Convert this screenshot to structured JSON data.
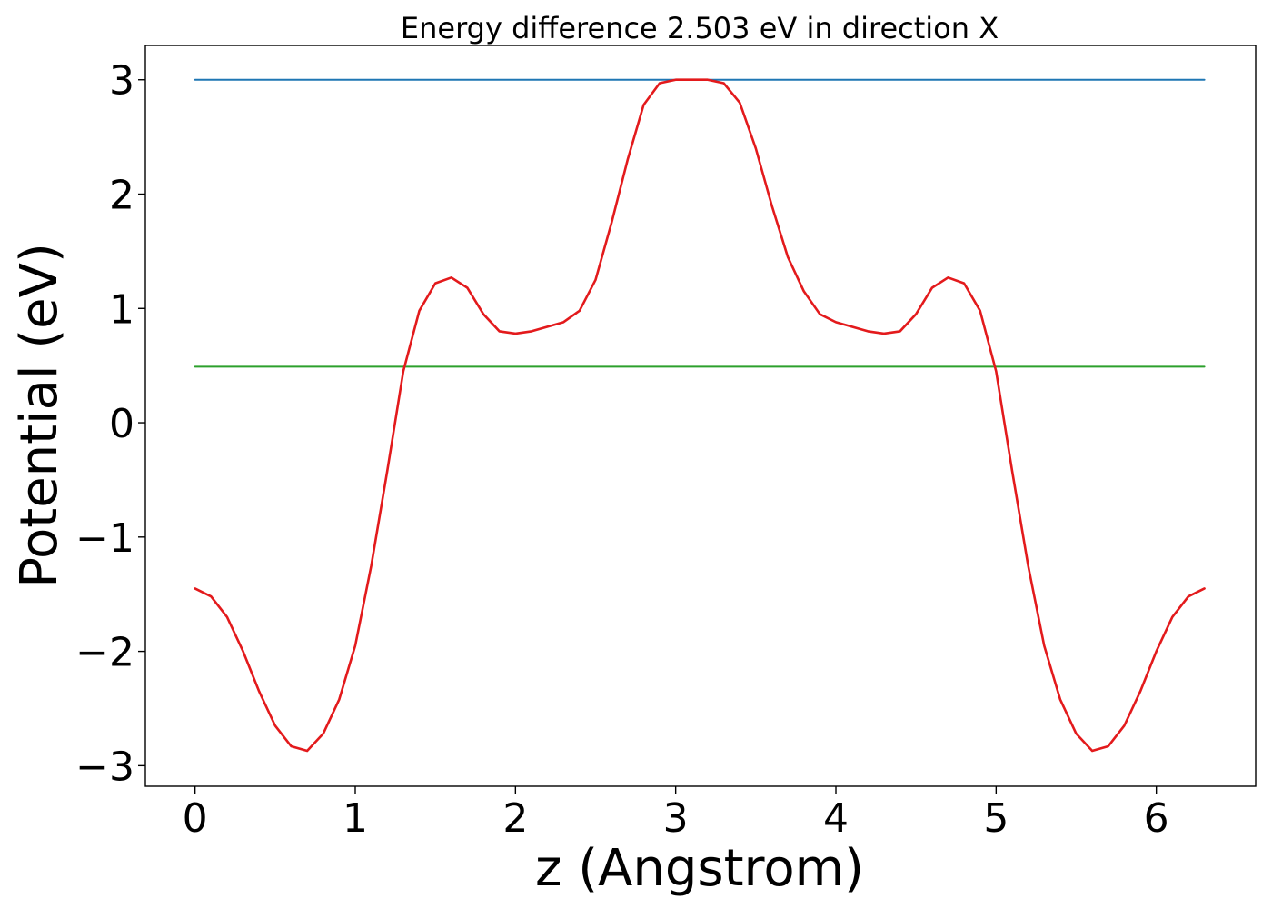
{
  "chart_data": {
    "type": "line",
    "title": "Energy difference 2.503 eV in direction X",
    "xlabel": "z (Angstrom)",
    "ylabel": "Potential (eV)",
    "xlim": [
      -0.31,
      6.62
    ],
    "ylim": [
      -3.18,
      3.3
    ],
    "xticks": [
      0,
      1,
      2,
      3,
      4,
      5,
      6
    ],
    "xtick_labels": [
      "0",
      "1",
      "2",
      "3",
      "4",
      "5",
      "6"
    ],
    "yticks": [
      -3,
      -2,
      -1,
      0,
      1,
      2,
      3
    ],
    "ytick_labels": [
      "−3",
      "−2",
      "−1",
      "0",
      "1",
      "2",
      "3"
    ],
    "grid": false,
    "series": [
      {
        "color": "#1f77b4",
        "x": [
          0,
          6.3
        ],
        "y": [
          3.0,
          3.0
        ]
      },
      {
        "color": "#2ca02c",
        "x": [
          0,
          6.3
        ],
        "y": [
          0.49,
          0.49
        ]
      },
      {
        "color": "#e31a1c",
        "x": [
          0,
          0.1,
          0.2,
          0.3,
          0.4,
          0.5,
          0.6,
          0.7,
          0.8,
          0.9,
          1.0,
          1.1,
          1.2,
          1.3,
          1.4,
          1.5,
          1.6,
          1.7,
          1.8,
          1.9,
          2.0,
          2.1,
          2.2,
          2.3,
          2.4,
          2.5,
          2.6,
          2.7,
          2.8,
          2.9,
          3.0,
          3.1,
          3.2,
          3.3,
          3.4,
          3.5,
          3.6,
          3.7,
          3.8,
          3.9,
          4.0,
          4.1,
          4.2,
          4.3,
          4.4,
          4.5,
          4.6,
          4.7,
          4.8,
          4.9,
          5.0,
          5.1,
          5.2,
          5.3,
          5.4,
          5.5,
          5.6,
          5.7,
          5.8,
          5.9,
          6.0,
          6.1,
          6.2,
          6.3
        ],
        "y": [
          -1.45,
          -1.52,
          -1.7,
          -2.0,
          -2.35,
          -2.65,
          -2.83,
          -2.87,
          -2.72,
          -2.42,
          -1.95,
          -1.25,
          -0.42,
          0.45,
          0.98,
          1.22,
          1.27,
          1.18,
          0.95,
          0.8,
          0.78,
          0.8,
          0.84,
          0.88,
          0.98,
          1.25,
          1.75,
          2.3,
          2.78,
          2.97,
          3.0,
          3.0,
          3.0,
          2.97,
          2.8,
          2.4,
          1.9,
          1.45,
          1.15,
          0.95,
          0.88,
          0.84,
          0.8,
          0.78,
          0.8,
          0.95,
          1.18,
          1.27,
          1.22,
          0.98,
          0.45,
          -0.42,
          -1.25,
          -1.95,
          -2.42,
          -2.72,
          -2.87,
          -2.83,
          -2.65,
          -2.35,
          -2.0,
          -1.7,
          -1.52,
          -1.45
        ]
      }
    ]
  }
}
